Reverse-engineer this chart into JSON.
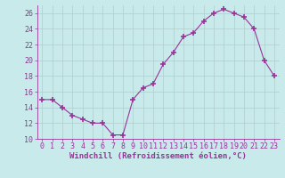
{
  "x": [
    0,
    1,
    2,
    3,
    4,
    5,
    6,
    7,
    8,
    9,
    10,
    11,
    12,
    13,
    14,
    15,
    16,
    17,
    18,
    19,
    20,
    21,
    22,
    23
  ],
  "y": [
    15,
    15,
    14,
    13,
    12.5,
    12,
    12,
    10.5,
    10.5,
    15,
    16.5,
    17,
    19.5,
    21,
    23,
    23.5,
    25,
    26,
    26.5,
    26,
    25.5,
    24,
    20,
    18
  ],
  "line_color": "#993399",
  "marker": "+",
  "marker_size": 4,
  "bg_color": "#c8eaea",
  "grid_color": "#b0cccc",
  "xlabel": "Windchill (Refroidissement éolien,°C)",
  "xlabel_color": "#993399",
  "xlabel_fontsize": 6.5,
  "tick_color": "#993399",
  "tick_fontsize": 6.0,
  "ylim": [
    10,
    27
  ],
  "xlim": [
    -0.5,
    23.5
  ],
  "yticks": [
    10,
    12,
    14,
    16,
    18,
    20,
    22,
    24,
    26
  ],
  "xticks": [
    0,
    1,
    2,
    3,
    4,
    5,
    6,
    7,
    8,
    9,
    10,
    11,
    12,
    13,
    14,
    15,
    16,
    17,
    18,
    19,
    20,
    21,
    22,
    23
  ]
}
